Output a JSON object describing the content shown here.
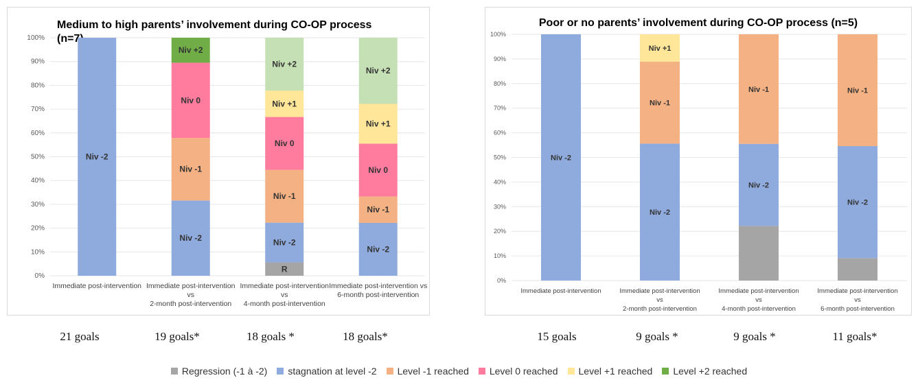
{
  "chart_data": [
    {
      "type": "bar",
      "stacked": true,
      "title": "Medium to high parents’ involvement during CO-OP process (n=7)",
      "categories": [
        [
          "Immediate post-intervention"
        ],
        [
          "Immediate post-intervention",
          "vs",
          "2-month post-intervention"
        ],
        [
          "Immediate post-intervention",
          "vs",
          "4-month post-intervention"
        ],
        [
          "Immediate post-intervention vs",
          "6-month post-intervention"
        ]
      ],
      "ylim": [
        0,
        100
      ],
      "yticks": [
        "0%",
        "10%",
        "20%",
        "30%",
        "40%",
        "50%",
        "60%",
        "70%",
        "80%",
        "90%",
        "100%"
      ],
      "grid": true,
      "series": [
        {
          "key": "regression",
          "values": [
            0,
            0,
            5.6,
            0
          ],
          "labels": [
            "",
            "",
            "R",
            ""
          ]
        },
        {
          "key": "stagnation",
          "values": [
            100,
            31.6,
            16.7,
            22.2
          ],
          "labels": [
            "Niv -2",
            "Niv -2",
            "Niv -2",
            "Niv -2"
          ]
        },
        {
          "key": "level_m1",
          "values": [
            0,
            26.3,
            22.2,
            11.1
          ],
          "labels": [
            "",
            "Niv -1",
            "Niv -1",
            "Niv -1"
          ]
        },
        {
          "key": "level_0",
          "values": [
            0,
            31.6,
            22.2,
            22.2
          ],
          "labels": [
            "",
            "Niv 0",
            "Niv 0",
            "Niv 0"
          ]
        },
        {
          "key": "level_p1",
          "values": [
            0,
            0,
            11.1,
            16.7
          ],
          "labels": [
            "",
            "",
            "Niv +1",
            "Niv +1"
          ]
        },
        {
          "key": "level_p2",
          "values": [
            0,
            10.5,
            22.2,
            27.8
          ],
          "labels": [
            "",
            "Niv +2",
            "Niv +2",
            "Niv +2"
          ]
        }
      ],
      "goals": [
        "21 goals",
        "19 goals*",
        "18 goals *",
        "18 goals*"
      ]
    },
    {
      "type": "bar",
      "stacked": true,
      "title": "Poor or no parents’ involvement during CO-OP process (n=5)",
      "categories": [
        [
          "Immediate post-intervention"
        ],
        [
          "Immediate post-intervention",
          "vs",
          "2-month post-intervention"
        ],
        [
          "Immediate post-intervention",
          "vs",
          "4-month post-intervention"
        ],
        [
          "Immediate post-intervention",
          "vs",
          "6-month post-intervention"
        ]
      ],
      "ylim": [
        0,
        100
      ],
      "yticks": [
        "0%",
        "10%",
        "20%",
        "30%",
        "40%",
        "50%",
        "60%",
        "70%",
        "80%",
        "90%",
        "100%"
      ],
      "grid": true,
      "series": [
        {
          "key": "regression",
          "values": [
            0,
            0,
            22.2,
            9.1
          ],
          "labels": [
            "",
            "",
            "",
            ""
          ]
        },
        {
          "key": "stagnation",
          "values": [
            100,
            55.6,
            33.3,
            45.5
          ],
          "labels": [
            "Niv -2",
            "Niv -2",
            "Niv -2",
            "Niv -2"
          ]
        },
        {
          "key": "level_m1",
          "values": [
            0,
            33.3,
            44.5,
            45.4
          ],
          "labels": [
            "",
            "Niv -1",
            "Niv -1",
            "Niv -1"
          ]
        },
        {
          "key": "level_0",
          "values": [
            0,
            0,
            0,
            0
          ],
          "labels": [
            "",
            "",
            "",
            ""
          ]
        },
        {
          "key": "level_p1",
          "values": [
            0,
            11.1,
            0,
            0
          ],
          "labels": [
            "",
            "Niv +1",
            "",
            ""
          ]
        },
        {
          "key": "level_p2",
          "values": [
            0,
            0,
            0,
            0
          ],
          "labels": [
            "",
            "",
            "",
            ""
          ]
        }
      ],
      "goals": [
        "15 goals",
        "9 goals *",
        "9 goals *",
        "11 goals*"
      ]
    }
  ],
  "legend": [
    {
      "key": "regression",
      "label": "Regression (-1 à -2)",
      "color": "#a5a5a5"
    },
    {
      "key": "stagnation",
      "label": "stagnation at level -2",
      "color": "#8faadc"
    },
    {
      "key": "level_m1",
      "label": "Level -1 reached",
      "color": "#f4b183"
    },
    {
      "key": "level_0",
      "label": "Level 0 reached",
      "color": "#ff7c9f"
    },
    {
      "key": "level_p1",
      "label": "Level +1 reached",
      "color": "#ffe699"
    },
    {
      "key": "level_p2",
      "label": "Level +2 reached",
      "color": "#70ad47"
    }
  ],
  "colors": {
    "level_p2_light": "#c5e0b4"
  }
}
